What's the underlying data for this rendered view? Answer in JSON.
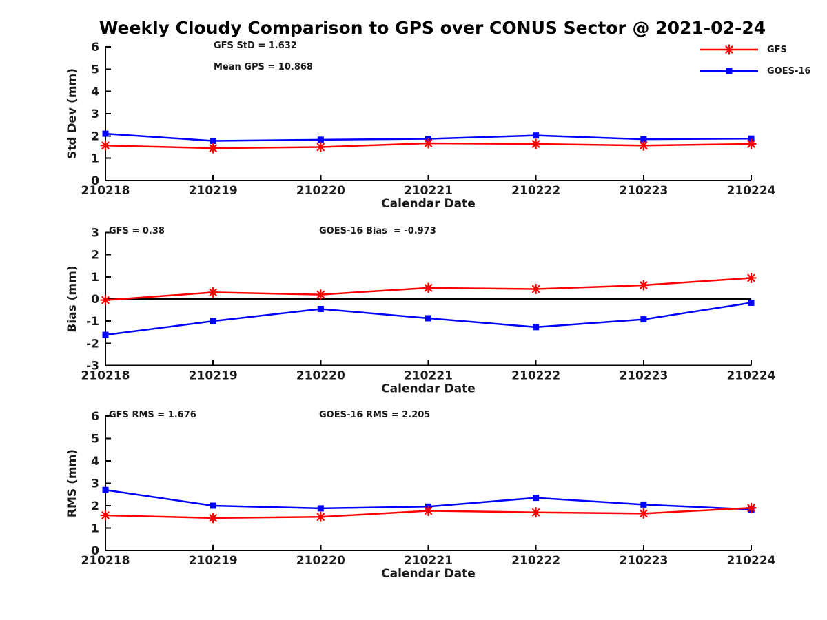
{
  "title": "Weekly Cloudy Comparison to GPS over CONUS Sector @ 2021-02-24",
  "legend": {
    "position": "top-right",
    "items": [
      {
        "label": "GFS",
        "color": "#ff0000",
        "marker": "asterisk"
      },
      {
        "label": "GOES-16",
        "color": "#0000ff",
        "marker": "square"
      }
    ]
  },
  "colors": {
    "gfs": "#ff0000",
    "goes16": "#0000ff",
    "axis": "#000000",
    "text": "#1a1a1a"
  },
  "chart_data": [
    {
      "type": "line",
      "title": "",
      "xlabel": "Calendar Date",
      "ylabel": "Std Dev (mm)",
      "ylim": [
        0,
        6
      ],
      "yticks": [
        0,
        1,
        2,
        3,
        4,
        5,
        6
      ],
      "grid": false,
      "zero_line": false,
      "categories": [
        "210218",
        "210219",
        "210220",
        "210221",
        "210222",
        "210223",
        "210224"
      ],
      "series": [
        {
          "name": "GFS",
          "color": "#ff0000",
          "marker": "asterisk",
          "values": [
            1.57,
            1.45,
            1.5,
            1.67,
            1.64,
            1.57,
            1.64
          ]
        },
        {
          "name": "GOES-16",
          "color": "#0000ff",
          "marker": "square",
          "values": [
            2.1,
            1.78,
            1.83,
            1.87,
            2.02,
            1.85,
            1.88
          ]
        }
      ],
      "annotations": [
        "GFS StD = 1.632",
        "Mean GPS = 10.868"
      ]
    },
    {
      "type": "line",
      "title": "",
      "xlabel": "Calendar Date",
      "ylabel": "Bias (mm)",
      "ylim": [
        -3,
        3
      ],
      "yticks": [
        -3,
        -2,
        -1,
        0,
        1,
        2,
        3
      ],
      "grid": false,
      "zero_line": true,
      "categories": [
        "210218",
        "210219",
        "210220",
        "210221",
        "210222",
        "210223",
        "210224"
      ],
      "series": [
        {
          "name": "GFS",
          "color": "#ff0000",
          "marker": "asterisk",
          "values": [
            -0.05,
            0.3,
            0.2,
            0.5,
            0.45,
            0.62,
            0.95
          ]
        },
        {
          "name": "GOES-16",
          "color": "#0000ff",
          "marker": "square",
          "values": [
            -1.62,
            -1.0,
            -0.45,
            -0.87,
            -1.27,
            -0.92,
            -0.17
          ]
        }
      ],
      "annotations": [
        "GFS = 0.38",
        "GOES-16 Bias  = -0.973"
      ]
    },
    {
      "type": "line",
      "title": "",
      "xlabel": "Calendar Date",
      "ylabel": "RMS (mm)",
      "ylim": [
        0,
        6
      ],
      "yticks": [
        0,
        1,
        2,
        3,
        4,
        5,
        6
      ],
      "grid": false,
      "zero_line": false,
      "categories": [
        "210218",
        "210219",
        "210220",
        "210221",
        "210222",
        "210223",
        "210224"
      ],
      "series": [
        {
          "name": "GFS",
          "color": "#ff0000",
          "marker": "asterisk",
          "values": [
            1.57,
            1.45,
            1.5,
            1.77,
            1.7,
            1.65,
            1.9
          ]
        },
        {
          "name": "GOES-16",
          "color": "#0000ff",
          "marker": "square",
          "values": [
            2.7,
            2.0,
            1.88,
            1.96,
            2.35,
            2.05,
            1.83
          ]
        }
      ],
      "annotations": [
        "GFS RMS = 1.676",
        "GOES-16 RMS = 2.205"
      ]
    }
  ]
}
